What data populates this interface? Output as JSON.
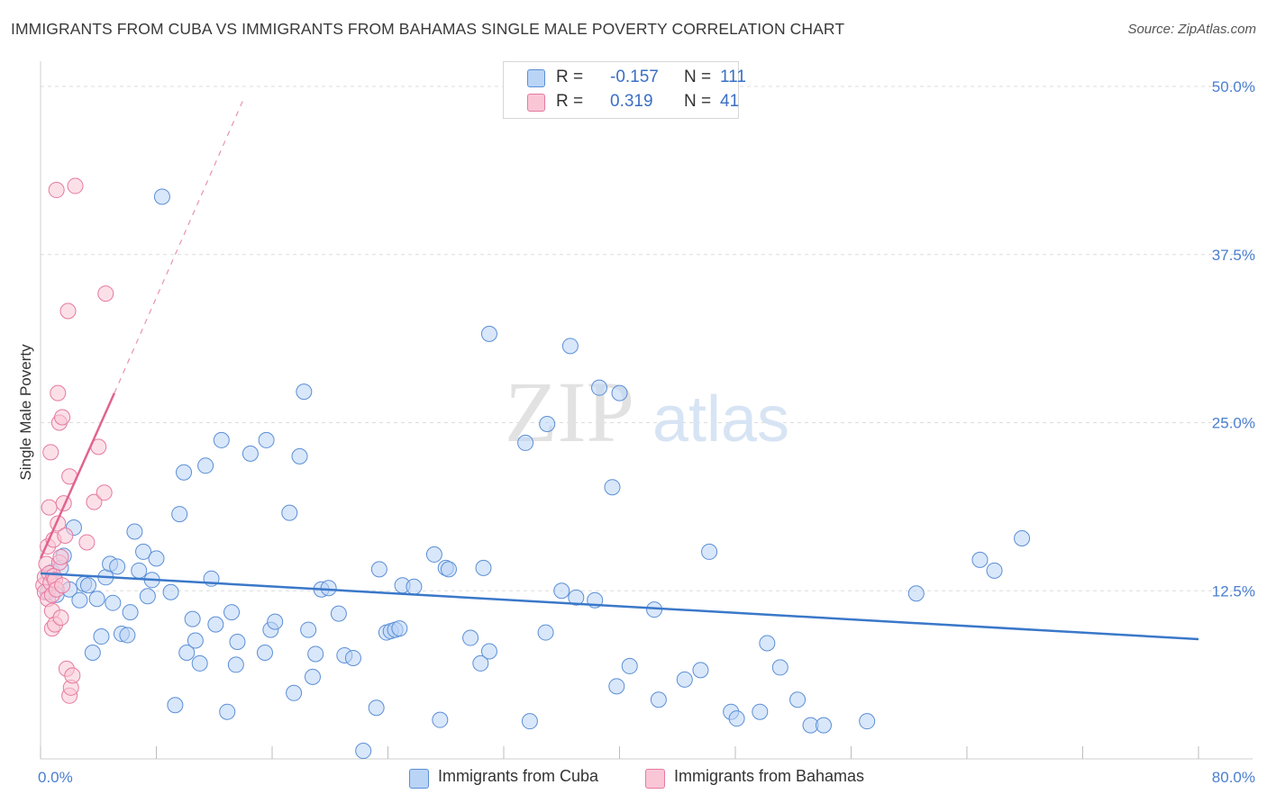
{
  "title": "IMMIGRANTS FROM CUBA VS IMMIGRANTS FROM BAHAMAS SINGLE MALE POVERTY CORRELATION CHART",
  "source": "Source: ZipAtlas.com",
  "watermark": {
    "zip": "ZIP",
    "atlas": "atlas"
  },
  "legend": {
    "cuba": {
      "r_label": "R =",
      "r_value": "-0.157",
      "n_label": "N =",
      "n_value": "111"
    },
    "bahamas": {
      "r_label": "R =",
      "r_value": "0.319",
      "n_label": "N =",
      "n_value": "41"
    }
  },
  "colors": {
    "cuba_fill": "#b9d4f5",
    "cuba_stroke": "#5b8fd6",
    "cuba_line": "#3a78c9",
    "bahamas_fill": "#f9c6d6",
    "bahamas_stroke": "#e57aa0",
    "bahamas_line": "#e0648f",
    "grid": "#dcdcdc",
    "tick_text": "#4a7fd0"
  },
  "chart_data": {
    "type": "scatter",
    "title": "IMMIGRANTS FROM CUBA VS IMMIGRANTS FROM BAHAMAS SINGLE MALE POVERTY CORRELATION CHART",
    "xlabel": "",
    "ylabel": "Single Male Poverty",
    "xlim": [
      0,
      80
    ],
    "ylim": [
      0,
      50
    ],
    "x_tick_labels": [
      "0.0%",
      "80.0%"
    ],
    "y_ticks": [
      12.5,
      25.0,
      37.5,
      50.0
    ],
    "y_tick_labels": [
      "12.5%",
      "25.0%",
      "37.5%",
      "50.0%"
    ],
    "grid": true,
    "legend_position": "top-center",
    "series": [
      {
        "name": "Immigrants from Cuba",
        "trend": {
          "x": [
            0,
            80
          ],
          "y": [
            13.8,
            8.9
          ]
        },
        "points": [
          [
            0.5,
            12.4
          ],
          [
            0.8,
            13.9
          ],
          [
            1.1,
            12.2
          ],
          [
            1.4,
            14.2
          ],
          [
            1.6,
            15.1
          ],
          [
            2.0,
            12.6
          ],
          [
            2.3,
            17.2
          ],
          [
            2.7,
            11.8
          ],
          [
            3.0,
            13.0
          ],
          [
            3.3,
            12.9
          ],
          [
            3.6,
            7.9
          ],
          [
            3.9,
            11.9
          ],
          [
            4.2,
            9.1
          ],
          [
            4.5,
            13.5
          ],
          [
            4.8,
            14.5
          ],
          [
            5.0,
            11.6
          ],
          [
            5.3,
            14.3
          ],
          [
            5.6,
            9.3
          ],
          [
            6.0,
            9.2
          ],
          [
            6.2,
            10.9
          ],
          [
            6.5,
            16.9
          ],
          [
            6.8,
            14.0
          ],
          [
            7.1,
            15.4
          ],
          [
            7.4,
            12.1
          ],
          [
            7.7,
            13.3
          ],
          [
            8.0,
            14.9
          ],
          [
            8.4,
            41.8
          ],
          [
            9.0,
            12.4
          ],
          [
            9.3,
            4.0
          ],
          [
            9.6,
            18.2
          ],
          [
            9.9,
            21.3
          ],
          [
            10.1,
            7.9
          ],
          [
            10.5,
            10.4
          ],
          [
            10.7,
            8.8
          ],
          [
            11.0,
            7.1
          ],
          [
            11.4,
            21.8
          ],
          [
            11.8,
            13.4
          ],
          [
            12.1,
            10.0
          ],
          [
            12.5,
            23.7
          ],
          [
            12.9,
            3.5
          ],
          [
            13.2,
            10.9
          ],
          [
            13.5,
            7.0
          ],
          [
            13.6,
            8.7
          ],
          [
            14.5,
            22.7
          ],
          [
            15.5,
            7.9
          ],
          [
            15.6,
            23.7
          ],
          [
            15.9,
            9.6
          ],
          [
            16.2,
            10.2
          ],
          [
            17.2,
            18.3
          ],
          [
            17.5,
            4.9
          ],
          [
            17.9,
            22.5
          ],
          [
            18.2,
            27.3
          ],
          [
            18.5,
            9.6
          ],
          [
            18.8,
            6.1
          ],
          [
            19.0,
            7.8
          ],
          [
            19.4,
            12.6
          ],
          [
            19.9,
            12.7
          ],
          [
            20.6,
            10.8
          ],
          [
            21.0,
            7.7
          ],
          [
            21.6,
            7.5
          ],
          [
            22.3,
            0.6
          ],
          [
            23.2,
            3.8
          ],
          [
            23.4,
            14.1
          ],
          [
            23.9,
            9.4
          ],
          [
            24.2,
            9.5
          ],
          [
            24.5,
            9.6
          ],
          [
            24.8,
            9.7
          ],
          [
            25.0,
            12.9
          ],
          [
            25.8,
            12.8
          ],
          [
            27.2,
            15.2
          ],
          [
            27.6,
            2.9
          ],
          [
            28.0,
            14.2
          ],
          [
            28.2,
            14.1
          ],
          [
            29.7,
            9.0
          ],
          [
            30.4,
            7.1
          ],
          [
            30.6,
            14.2
          ],
          [
            31.0,
            8.0
          ],
          [
            31.0,
            31.6
          ],
          [
            33.5,
            23.5
          ],
          [
            33.8,
            2.8
          ],
          [
            34.9,
            9.4
          ],
          [
            35.0,
            24.9
          ],
          [
            36.0,
            12.5
          ],
          [
            36.6,
            30.7
          ],
          [
            37.0,
            12.0
          ],
          [
            38.3,
            11.8
          ],
          [
            38.6,
            27.6
          ],
          [
            39.5,
            20.2
          ],
          [
            39.8,
            5.4
          ],
          [
            40.0,
            27.2
          ],
          [
            40.7,
            6.9
          ],
          [
            42.4,
            11.1
          ],
          [
            42.7,
            4.4
          ],
          [
            44.5,
            5.9
          ],
          [
            45.6,
            6.6
          ],
          [
            46.2,
            15.4
          ],
          [
            47.7,
            3.5
          ],
          [
            48.1,
            3.0
          ],
          [
            49.7,
            3.5
          ],
          [
            50.2,
            8.6
          ],
          [
            51.1,
            6.8
          ],
          [
            52.3,
            4.4
          ],
          [
            53.2,
            2.5
          ],
          [
            54.1,
            2.5
          ],
          [
            57.1,
            2.8
          ],
          [
            60.5,
            12.3
          ],
          [
            64.9,
            14.8
          ],
          [
            65.9,
            14.0
          ],
          [
            67.8,
            16.4
          ]
        ]
      },
      {
        "name": "Immigrants from Bahamas",
        "trend": {
          "x": [
            0,
            5.1
          ],
          "y": [
            14.9,
            27.2
          ]
        },
        "trend_extended": {
          "x": [
            5.1,
            14.0
          ],
          "y": [
            27.2,
            49.0
          ]
        },
        "points": [
          [
            0.2,
            12.9
          ],
          [
            0.3,
            13.5
          ],
          [
            0.3,
            12.4
          ],
          [
            0.4,
            14.5
          ],
          [
            0.5,
            15.8
          ],
          [
            0.5,
            11.9
          ],
          [
            0.6,
            13.8
          ],
          [
            0.6,
            18.7
          ],
          [
            0.7,
            22.8
          ],
          [
            0.7,
            13.1
          ],
          [
            0.8,
            12.2
          ],
          [
            0.8,
            11.0
          ],
          [
            0.8,
            9.7
          ],
          [
            0.9,
            13.6
          ],
          [
            0.9,
            16.3
          ],
          [
            1.0,
            13.3
          ],
          [
            1.0,
            10.0
          ],
          [
            1.1,
            12.6
          ],
          [
            1.1,
            42.3
          ],
          [
            1.2,
            17.5
          ],
          [
            1.2,
            27.2
          ],
          [
            1.3,
            14.6
          ],
          [
            1.3,
            25.0
          ],
          [
            1.4,
            10.5
          ],
          [
            1.4,
            15.0
          ],
          [
            1.5,
            12.9
          ],
          [
            1.5,
            25.4
          ],
          [
            1.6,
            19.0
          ],
          [
            1.7,
            16.6
          ],
          [
            1.8,
            6.7
          ],
          [
            1.9,
            33.3
          ],
          [
            2.0,
            21.0
          ],
          [
            2.0,
            4.7
          ],
          [
            2.1,
            5.3
          ],
          [
            2.2,
            6.2
          ],
          [
            2.4,
            42.6
          ],
          [
            3.2,
            16.1
          ],
          [
            3.7,
            19.1
          ],
          [
            4.0,
            23.2
          ],
          [
            4.4,
            19.8
          ],
          [
            4.5,
            34.6
          ]
        ]
      }
    ]
  },
  "bottom_legend": {
    "cuba": "Immigrants from Cuba",
    "bahamas": "Immigrants from Bahamas"
  }
}
